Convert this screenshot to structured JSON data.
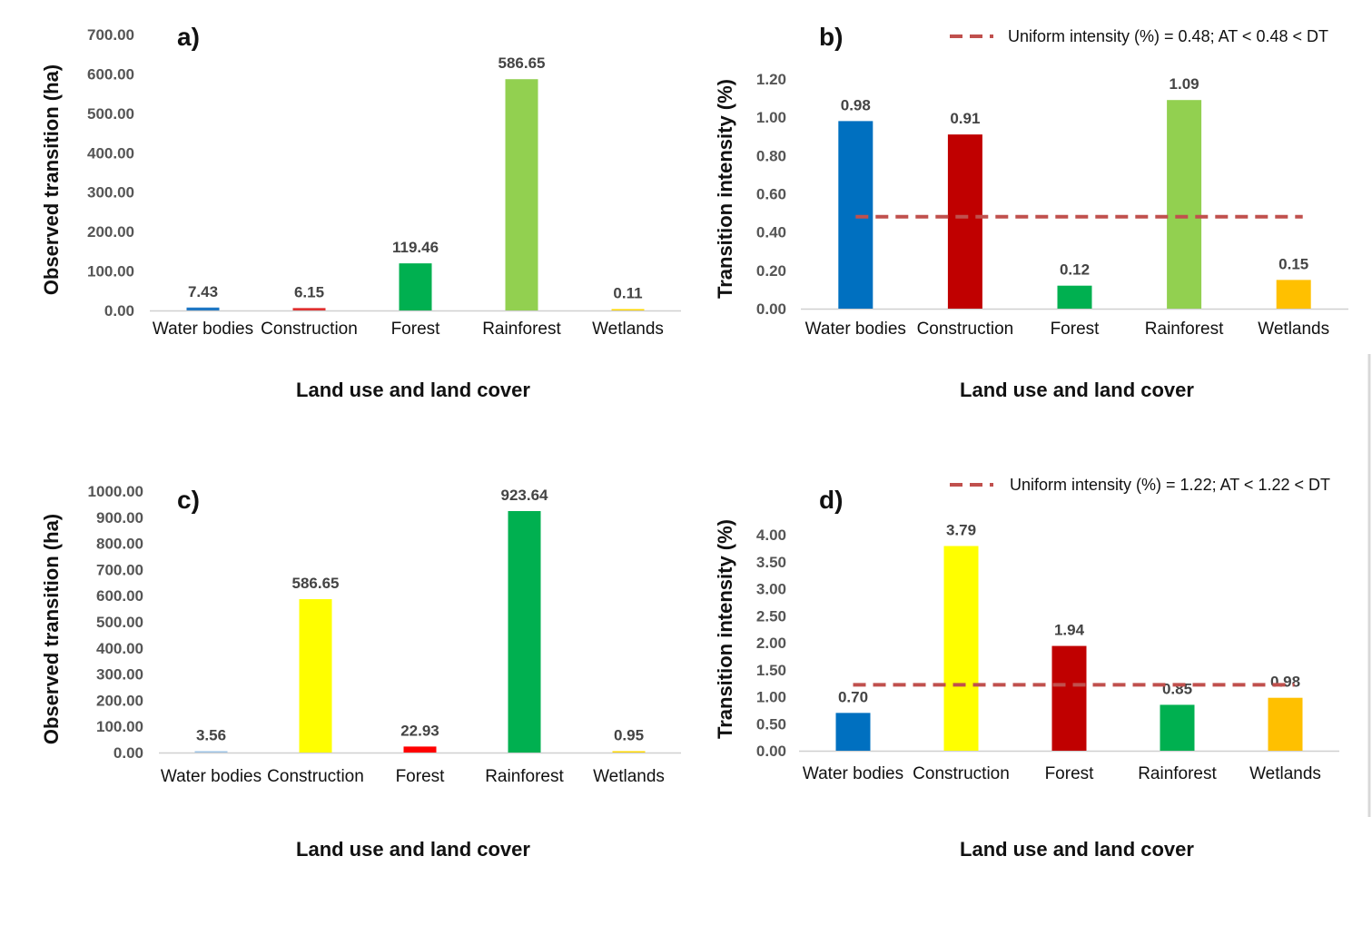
{
  "chart_data": [
    {
      "panel": "a)",
      "type": "bar",
      "categories": [
        "Water bodies",
        "Construction",
        "Forest",
        "Rainforest",
        "Wetlands"
      ],
      "values": [
        7.43,
        6.15,
        119.46,
        586.65,
        0.11
      ],
      "value_labels": [
        "7.43",
        "6.15",
        "119.46",
        "586.65",
        "0.11"
      ],
      "colors": [
        "#1f77c4",
        "#e03030",
        "#00b050",
        "#92d050",
        "#ffd700"
      ],
      "xlabel": "Land use and land cover",
      "ylabel": "Observed transition (ha)",
      "ylim": [
        0,
        700
      ],
      "yticks": [
        0,
        100,
        200,
        300,
        400,
        500,
        600,
        700
      ],
      "ytick_labels": [
        "0.00",
        "100.00",
        "200.00",
        "300.00",
        "400.00",
        "500.00",
        "600.00",
        "700.00"
      ],
      "grid": false,
      "legend": null
    },
    {
      "panel": "b)",
      "type": "bar",
      "categories": [
        "Water bodies",
        "Construction",
        "Forest",
        "Rainforest",
        "Wetlands"
      ],
      "values": [
        0.98,
        0.91,
        0.12,
        1.09,
        0.15
      ],
      "value_labels": [
        "0.98",
        "0.91",
        "0.12",
        "1.09",
        "0.15"
      ],
      "colors": [
        "#0070c0",
        "#c00000",
        "#00b050",
        "#92d050",
        "#ffc000"
      ],
      "xlabel": "Land use and land cover",
      "ylabel": "Transition intensity (%)",
      "ylim": [
        0,
        1.2
      ],
      "yticks": [
        0,
        0.2,
        0.4,
        0.6,
        0.8,
        1.0,
        1.2
      ],
      "ytick_labels": [
        "0.00",
        "0.20",
        "0.40",
        "0.60",
        "0.80",
        "1.00",
        "1.20"
      ],
      "uniform_intensity": 0.48,
      "grid": false,
      "legend": {
        "placement": "top-right",
        "label": "Uniform intensity (%) = 0.48; AT < 0.48 < DT",
        "color": "#c0504d"
      }
    },
    {
      "panel": "c)",
      "type": "bar",
      "categories": [
        "Water bodies",
        "Construction",
        "Forest",
        "Rainforest",
        "Wetlands"
      ],
      "values": [
        3.56,
        586.65,
        22.93,
        923.64,
        0.95
      ],
      "value_labels": [
        "3.56",
        "586.65",
        "22.93",
        "923.64",
        "0.95"
      ],
      "colors": [
        "#9dc3e6",
        "#ffff00",
        "#ff0000",
        "#00b050",
        "#ffd700"
      ],
      "xlabel": "Land use and land cover",
      "ylabel": "Observed transition (ha)",
      "ylim": [
        0,
        1000
      ],
      "yticks": [
        0,
        100,
        200,
        300,
        400,
        500,
        600,
        700,
        800,
        900,
        1000
      ],
      "ytick_labels": [
        "0.00",
        "100.00",
        "200.00",
        "300.00",
        "400.00",
        "500.00",
        "600.00",
        "700.00",
        "800.00",
        "900.00",
        "1000.00"
      ],
      "grid": false,
      "legend": null
    },
    {
      "panel": "d)",
      "type": "bar",
      "categories": [
        "Water bodies",
        "Construction",
        "Forest",
        "Rainforest",
        "Wetlands"
      ],
      "values": [
        0.7,
        3.79,
        1.94,
        0.85,
        0.98
      ],
      "value_labels": [
        "0.70",
        "3.79",
        "1.94",
        "0.85",
        "0.98"
      ],
      "colors": [
        "#0070c0",
        "#ffff00",
        "#c00000",
        "#00b050",
        "#ffc000"
      ],
      "xlabel": "Land use and land cover",
      "ylabel": "Transition intensity (%)",
      "ylim": [
        0,
        4.0
      ],
      "yticks": [
        0,
        0.5,
        1.0,
        1.5,
        2.0,
        2.5,
        3.0,
        3.5,
        4.0
      ],
      "ytick_labels": [
        "0.00",
        "0.50",
        "1.00",
        "1.50",
        "2.00",
        "2.50",
        "3.00",
        "3.50",
        "4.00"
      ],
      "uniform_intensity": 1.22,
      "grid": false,
      "legend": {
        "placement": "top-right",
        "label": "Uniform intensity (%) = 1.22; AT < 1.22 < DT",
        "color": "#c0504d"
      }
    }
  ]
}
